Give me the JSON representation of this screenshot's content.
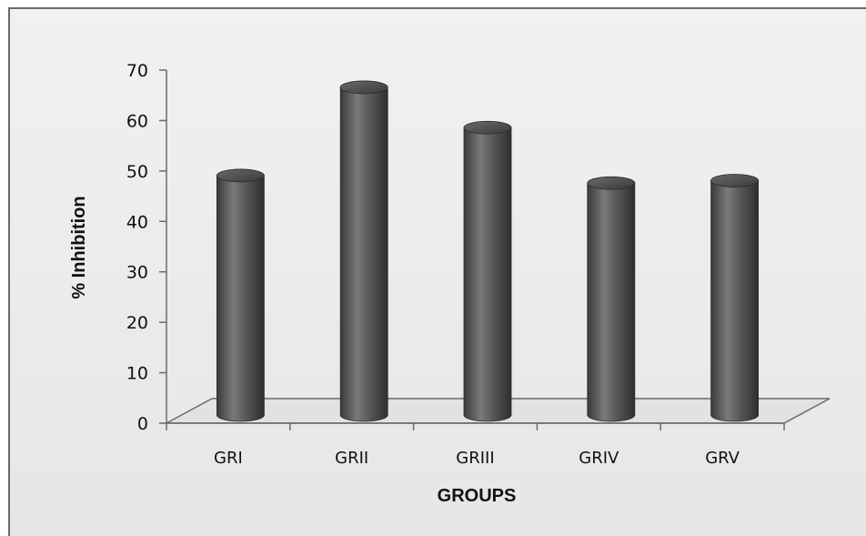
{
  "chart_data": {
    "type": "bar",
    "style": "3d-cylinder",
    "categories": [
      "GRI",
      "GRII",
      "GRIII",
      "GRIV",
      "GRV"
    ],
    "values": [
      48,
      65.5,
      57.5,
      46.5,
      47
    ],
    "xlabel": "GROUPS",
    "ylabel": "% Inhibition",
    "ylim": [
      0,
      70
    ],
    "yticks": [
      "0",
      "10",
      "20",
      "30",
      "40",
      "50",
      "60",
      "70"
    ],
    "grid": false,
    "legend": "none",
    "colors": {
      "bar": "#4a4a4a",
      "bar_light": "#8a8a8a",
      "bar_dark": "#2a2a2a",
      "floor": "#e3e3e3"
    }
  }
}
